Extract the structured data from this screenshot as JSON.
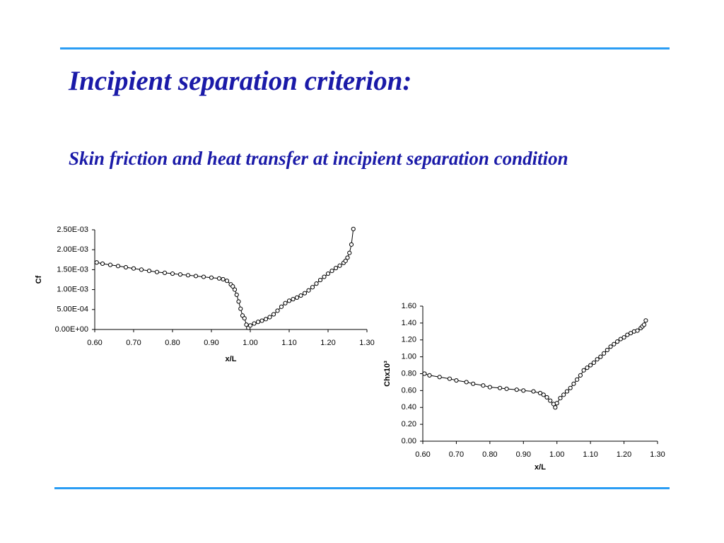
{
  "title": "Incipient separation criterion:",
  "subtitle": "Skin friction and heat transfer at incipient separation condition",
  "chart_data": [
    {
      "type": "line",
      "xlabel": "x/L",
      "ylabel": "Cf",
      "color": "#000000",
      "x": [
        0.605,
        0.62,
        0.64,
        0.66,
        0.68,
        0.7,
        0.72,
        0.74,
        0.76,
        0.78,
        0.8,
        0.82,
        0.84,
        0.86,
        0.88,
        0.9,
        0.92,
        0.93,
        0.94,
        0.95,
        0.955,
        0.96,
        0.965,
        0.97,
        0.975,
        0.98,
        0.985,
        0.99,
        0.995,
        1.0,
        1.01,
        1.02,
        1.03,
        1.04,
        1.05,
        1.06,
        1.07,
        1.08,
        1.09,
        1.1,
        1.11,
        1.12,
        1.13,
        1.14,
        1.15,
        1.16,
        1.17,
        1.18,
        1.19,
        1.2,
        1.21,
        1.22,
        1.23,
        1.24,
        1.245,
        1.25,
        1.255,
        1.26,
        1.265
      ],
      "values": [
        0.00168,
        0.00165,
        0.00162,
        0.00159,
        0.00156,
        0.00153,
        0.0015,
        0.00147,
        0.00144,
        0.00142,
        0.0014,
        0.00138,
        0.00136,
        0.00134,
        0.00132,
        0.0013,
        0.00128,
        0.00126,
        0.00122,
        0.00113,
        0.00108,
        0.001,
        0.00087,
        0.0007,
        0.00052,
        0.00035,
        0.00028,
        0.00012,
        4e-05,
        0.0001,
        0.00015,
        0.00019,
        0.00022,
        0.00026,
        0.00031,
        0.00038,
        0.00047,
        0.00057,
        0.00066,
        0.00072,
        0.00076,
        0.0008,
        0.00085,
        0.00091,
        0.00098,
        0.00106,
        0.00115,
        0.00124,
        0.00132,
        0.0014,
        0.00147,
        0.00154,
        0.0016,
        0.00167,
        0.00172,
        0.0018,
        0.00192,
        0.00213,
        0.00252
      ],
      "xlim": [
        0.6,
        1.3
      ],
      "xticks": [
        {
          "value": 0.6,
          "label": "0.60"
        },
        {
          "value": 0.7,
          "label": "0.70"
        },
        {
          "value": 0.8,
          "label": "0.80"
        },
        {
          "value": 0.9,
          "label": "0.90"
        },
        {
          "value": 1.0,
          "label": "1.00"
        },
        {
          "value": 1.1,
          "label": "1.10"
        },
        {
          "value": 1.2,
          "label": "1.20"
        },
        {
          "value": 1.3,
          "label": "1.30"
        }
      ],
      "ylim": [
        0,
        0.0025
      ],
      "yticks": [
        {
          "value": 0,
          "label": "0.00E+00"
        },
        {
          "value": 0.0005,
          "label": "5.00E-04"
        },
        {
          "value": 0.001,
          "label": "1.00E-03"
        },
        {
          "value": 0.0015,
          "label": "1.50E-03"
        },
        {
          "value": 0.002,
          "label": "2.00E-03"
        },
        {
          "value": 0.0025,
          "label": "2.50E-03"
        }
      ]
    },
    {
      "type": "line",
      "xlabel": "x/L",
      "ylabel": "Chx10³",
      "color": "#000000",
      "x": [
        0.605,
        0.62,
        0.65,
        0.68,
        0.7,
        0.73,
        0.75,
        0.78,
        0.8,
        0.83,
        0.85,
        0.88,
        0.9,
        0.93,
        0.95,
        0.96,
        0.97,
        0.98,
        0.99,
        0.995,
        1.0,
        1.01,
        1.02,
        1.03,
        1.04,
        1.05,
        1.06,
        1.07,
        1.08,
        1.09,
        1.1,
        1.11,
        1.12,
        1.13,
        1.14,
        1.15,
        1.16,
        1.17,
        1.18,
        1.19,
        1.2,
        1.21,
        1.22,
        1.23,
        1.24,
        1.25,
        1.255,
        1.26,
        1.265
      ],
      "values": [
        0.8,
        0.78,
        0.76,
        0.74,
        0.72,
        0.7,
        0.68,
        0.66,
        0.64,
        0.63,
        0.62,
        0.61,
        0.6,
        0.59,
        0.57,
        0.55,
        0.52,
        0.48,
        0.44,
        0.4,
        0.45,
        0.51,
        0.55,
        0.59,
        0.63,
        0.68,
        0.73,
        0.78,
        0.84,
        0.87,
        0.9,
        0.93,
        0.97,
        1.0,
        1.04,
        1.08,
        1.12,
        1.15,
        1.18,
        1.21,
        1.23,
        1.26,
        1.28,
        1.3,
        1.31,
        1.34,
        1.36,
        1.38,
        1.43
      ],
      "xlim": [
        0.6,
        1.3
      ],
      "xticks": [
        {
          "value": 0.6,
          "label": "0.60"
        },
        {
          "value": 0.7,
          "label": "0.70"
        },
        {
          "value": 0.8,
          "label": "0.80"
        },
        {
          "value": 0.9,
          "label": "0.90"
        },
        {
          "value": 1.0,
          "label": "1.00"
        },
        {
          "value": 1.1,
          "label": "1.10"
        },
        {
          "value": 1.2,
          "label": "1.20"
        },
        {
          "value": 1.3,
          "label": "1.30"
        }
      ],
      "ylim": [
        0,
        1.6
      ],
      "yticks": [
        {
          "value": 0,
          "label": "0.00"
        },
        {
          "value": 0.2,
          "label": "0.20"
        },
        {
          "value": 0.4,
          "label": "0.40"
        },
        {
          "value": 0.6,
          "label": "0.60"
        },
        {
          "value": 0.8,
          "label": "0.80"
        },
        {
          "value": 1.0,
          "label": "1.00"
        },
        {
          "value": 1.2,
          "label": "1.20"
        },
        {
          "value": 1.4,
          "label": "1.40"
        },
        {
          "value": 1.6,
          "label": "1.60"
        }
      ]
    }
  ]
}
